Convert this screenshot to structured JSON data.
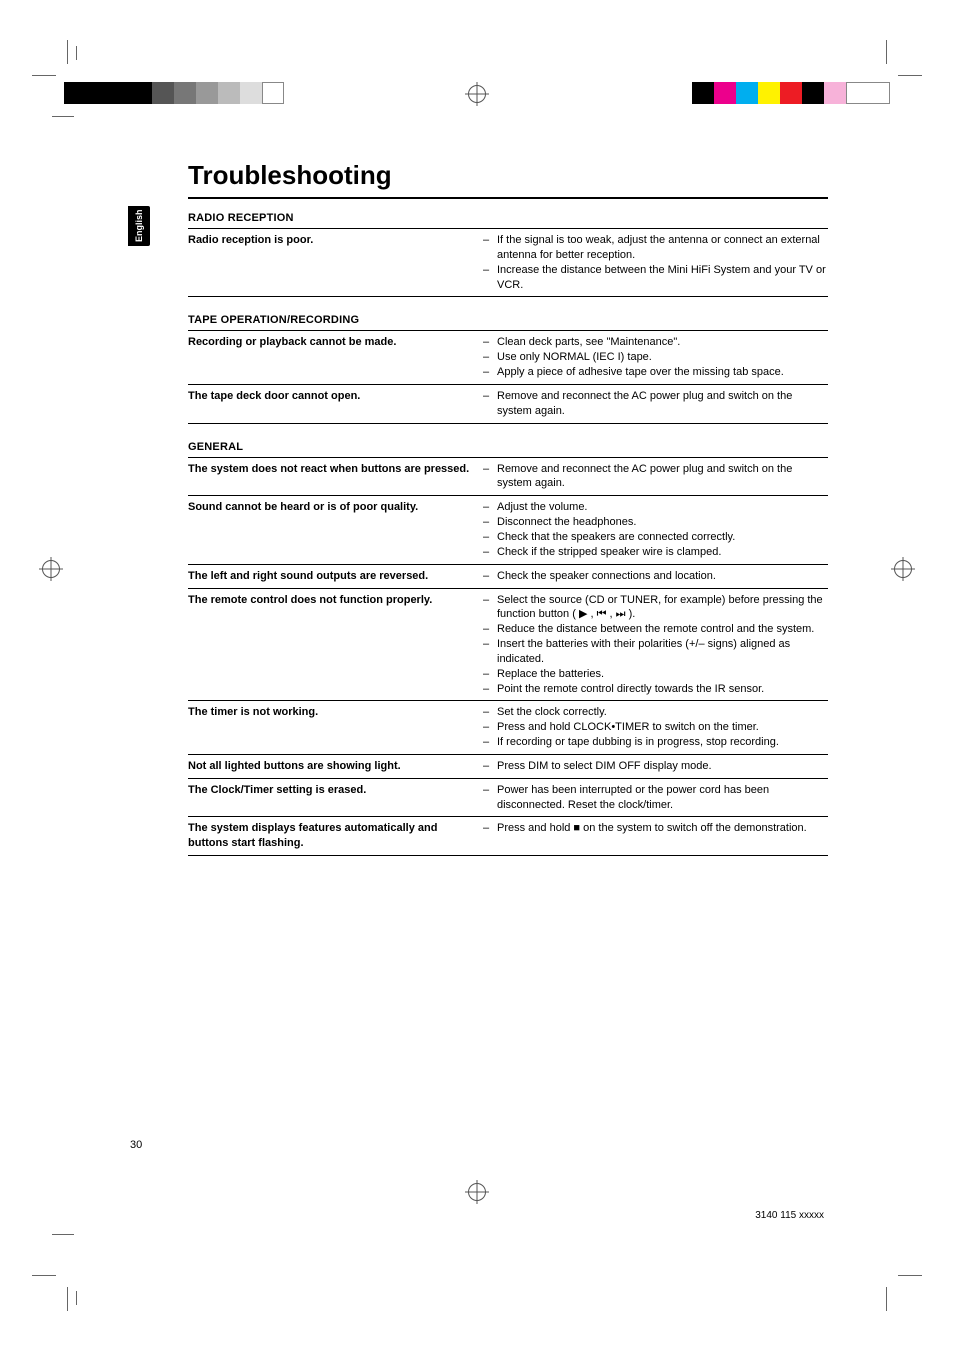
{
  "page_title": "Troubleshooting",
  "side_tab": "English",
  "page_number": "30",
  "doc_number": "3140 115 xxxxx",
  "reg_colors_left": [
    "#000000",
    "#000000",
    "#000000",
    "#555555",
    "#777777",
    "#999999",
    "#bbbbbb",
    "#dddddd",
    "#ffffff"
  ],
  "reg_colors_right": [
    "#000000",
    "#ec008c",
    "#00aeef",
    "#fff200",
    "#ed1c24",
    "#000000",
    "#f7b2d9",
    "#ffffff"
  ],
  "sections": [
    {
      "heading": "RADIO RECEPTION",
      "rows": [
        {
          "problem": "Radio reception is poor.",
          "solutions": [
            "If the signal is too weak, adjust the antenna or connect an external antenna for better reception.",
            "Increase the distance between the Mini HiFi System and your TV or VCR."
          ]
        }
      ]
    },
    {
      "heading": "TAPE OPERATION/RECORDING",
      "rows": [
        {
          "problem": "Recording or playback cannot be made.",
          "solutions": [
            "Clean deck parts, see \"Maintenance\".",
            "Use only NORMAL (IEC I) tape.",
            "Apply a piece of adhesive tape over the missing tab space."
          ]
        },
        {
          "problem": "The tape deck door cannot open.",
          "solutions": [
            "Remove and reconnect the AC power plug and switch on the system again."
          ]
        }
      ]
    },
    {
      "heading": "GENERAL",
      "rows": [
        {
          "problem": "The system does not react when buttons are pressed.",
          "solutions": [
            "Remove and reconnect the AC power plug and switch on the system again."
          ]
        },
        {
          "problem": "Sound cannot be heard or is of poor quality.",
          "solutions": [
            "Adjust the volume.",
            "Disconnect the headphones.",
            "Check that the speakers are connected correctly.",
            "Check if the stripped speaker wire is clamped."
          ]
        },
        {
          "problem": "The left and right sound outputs are reversed.",
          "solutions": [
            "Check the speaker connections and location."
          ]
        },
        {
          "problem": "The remote control does not function properly.",
          "solutions": [
            "Select the source (CD or TUNER, for example) before pressing the function button ( ▶ , ⏮ , ⏭ ).",
            "Reduce the distance between the remote control and the system.",
            "Insert the batteries with their polarities (+/– signs) aligned as indicated.",
            "Replace the batteries.",
            "Point the remote control directly towards the IR sensor."
          ]
        },
        {
          "problem": "The timer is not working.",
          "solutions": [
            "Set the clock correctly.",
            "Press and hold CLOCK•TIMER to switch on the timer.",
            "If recording or tape dubbing is in progress, stop recording."
          ]
        },
        {
          "problem": "Not all lighted buttons are showing light.",
          "solutions": [
            "Press DIM to select DIM OFF display mode."
          ]
        },
        {
          "problem": "The Clock/Timer setting is erased.",
          "solutions": [
            "Power has been interrupted or the power cord has been disconnected. Reset the clock/timer."
          ]
        },
        {
          "problem": "The system displays features automatically and buttons start flashing.",
          "solutions": [
            "Press and hold ■ on the system to switch off the demonstration."
          ]
        }
      ]
    }
  ]
}
